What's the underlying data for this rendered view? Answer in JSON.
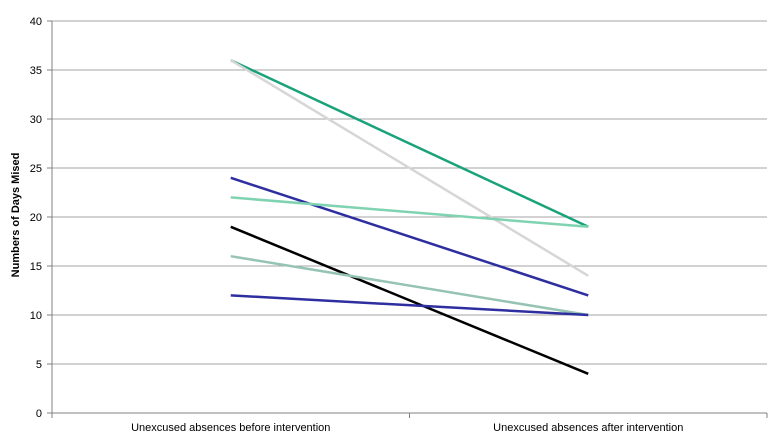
{
  "chart_data": {
    "type": "line",
    "title": "",
    "xlabel": "",
    "ylabel": "Numbers of Days Mised",
    "ylim": [
      0,
      40
    ],
    "yticks": [
      0,
      5,
      10,
      15,
      20,
      25,
      30,
      35,
      40
    ],
    "grid": true,
    "legend": "none",
    "categories": [
      "Unexcused absences before intervention",
      "Unexcused absences after intervention"
    ],
    "series": [
      {
        "color": "#1aa37a",
        "values": [
          36,
          19
        ]
      },
      {
        "color": "#d6d6d6",
        "values": [
          36,
          14
        ]
      },
      {
        "color": "#2e2ea0",
        "values": [
          24,
          12
        ]
      },
      {
        "color": "#7fd3b0",
        "values": [
          22,
          19
        ]
      },
      {
        "color": "#000000",
        "values": [
          19,
          4
        ]
      },
      {
        "color": "#96c4b2",
        "values": [
          16,
          10
        ]
      },
      {
        "color": "#2e2ea0",
        "values": [
          12,
          10
        ]
      }
    ]
  }
}
